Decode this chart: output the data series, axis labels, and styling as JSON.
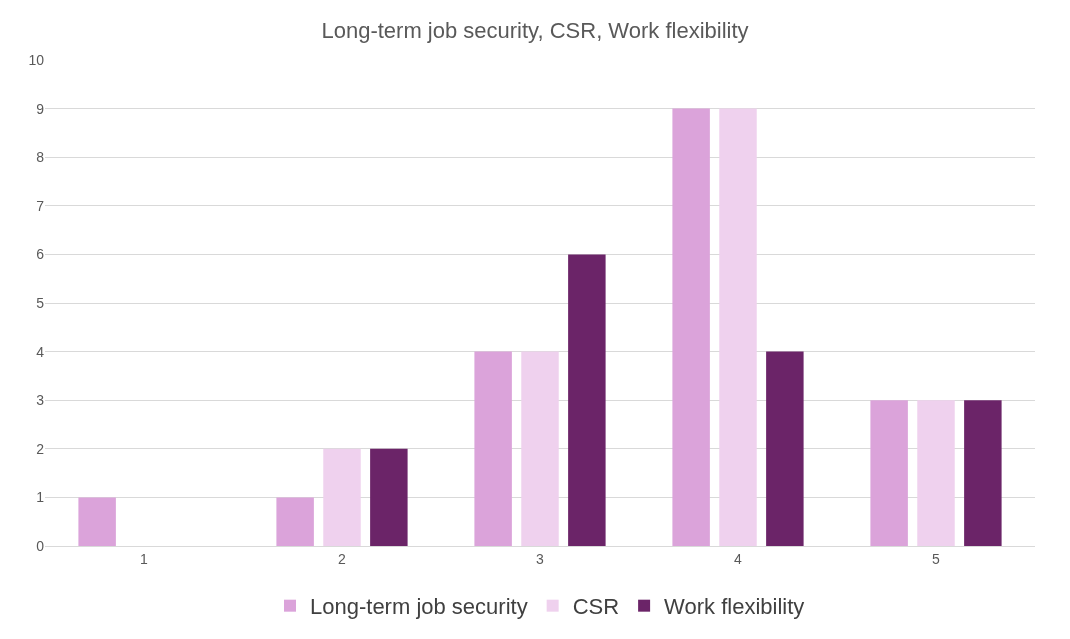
{
  "chart_data": {
    "type": "bar",
    "title": "Long-term job security, CSR, Work flexibility",
    "categories": [
      "1",
      "2",
      "3",
      "4",
      "5"
    ],
    "series": [
      {
        "name": "Long-term job security",
        "color": "#dba3da",
        "values": [
          1,
          1,
          4,
          9,
          3
        ]
      },
      {
        "name": "CSR",
        "color": "#efd1ee",
        "values": [
          0,
          2,
          4,
          9,
          3
        ]
      },
      {
        "name": "Work flexibility",
        "color": "#6b2468",
        "values": [
          0,
          2,
          6,
          4,
          3
        ]
      }
    ],
    "ylim": [
      0,
      10
    ],
    "yticks": [
      0,
      1,
      2,
      3,
      4,
      5,
      6,
      7,
      8,
      9,
      10
    ],
    "grid": "y",
    "legend": "bottom"
  }
}
